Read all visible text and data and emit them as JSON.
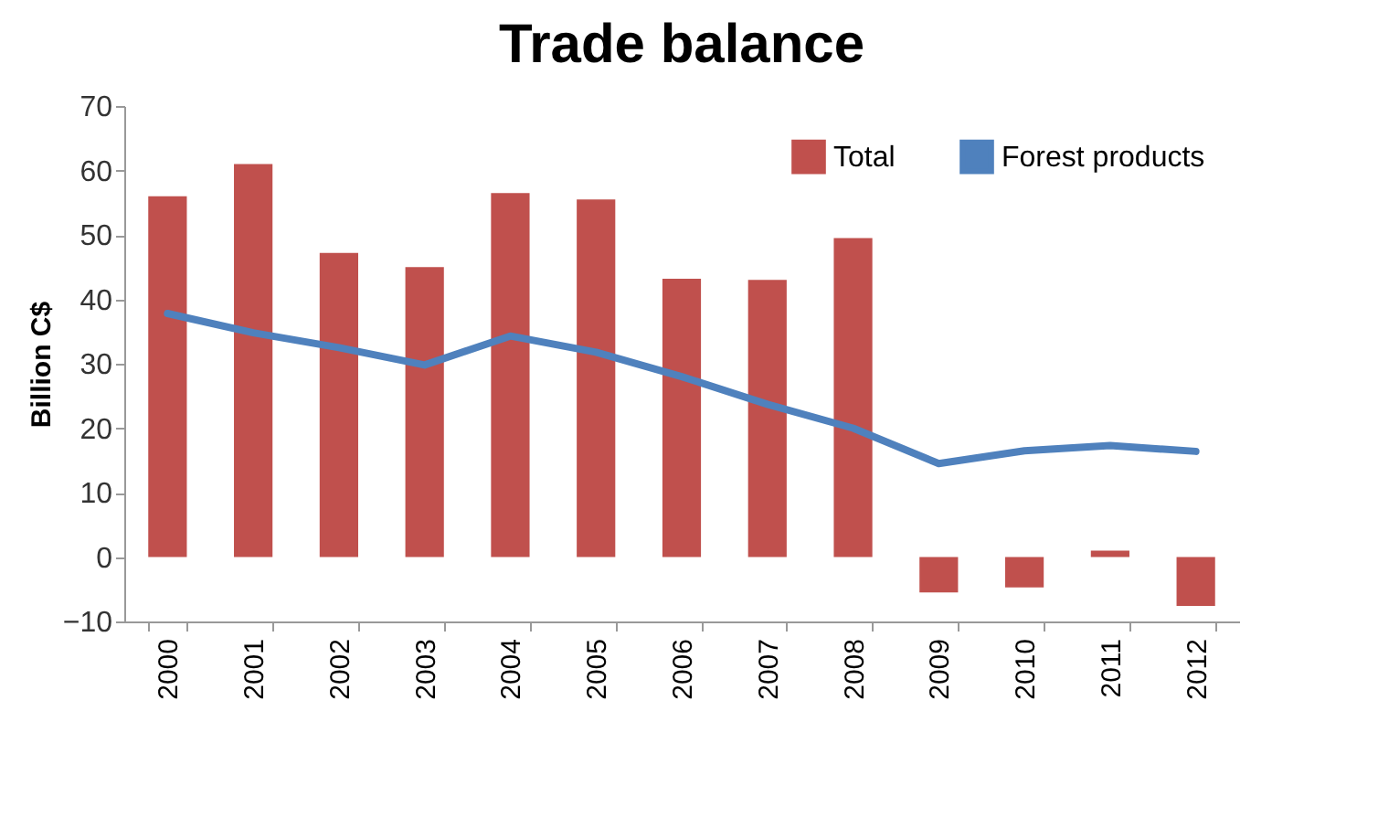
{
  "chart_data": {
    "type": "bar",
    "title": "Trade balance",
    "ylabel": "Billion C$",
    "categories": [
      "2000",
      "2001",
      "2002",
      "2003",
      "2004",
      "2005",
      "2006",
      "2007",
      "2008",
      "2009",
      "2010",
      "2011",
      "2012"
    ],
    "series": [
      {
        "name": "Total",
        "color": "#c0504d",
        "values": [
          56,
          61,
          47.2,
          45,
          56.5,
          55.5,
          43.2,
          43,
          49.5,
          -5.5,
          -4.7,
          1,
          -7.6
        ]
      },
      {
        "name": "Forest products",
        "type": "line",
        "color": "#4f81bd",
        "values": [
          37.8,
          34.8,
          32.5,
          29.8,
          34.3,
          31.8,
          28,
          23.7,
          20,
          14.5,
          16.5,
          17.3,
          16.4
        ]
      }
    ],
    "ylim": [
      -10,
      70
    ],
    "yticks": [
      -10,
      0,
      10,
      20,
      30,
      40,
      50,
      60,
      70
    ],
    "legend": "top right",
    "grid": false
  }
}
